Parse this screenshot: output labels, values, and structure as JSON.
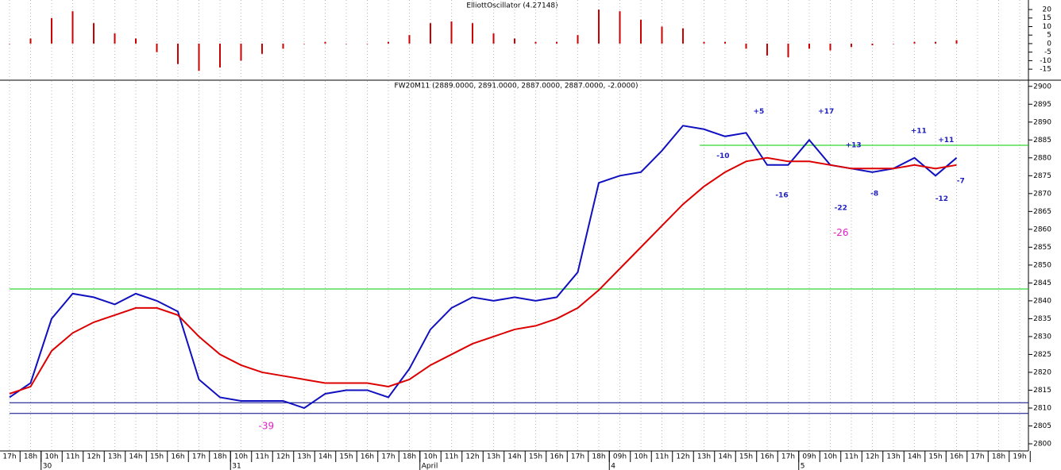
{
  "chart_data": [
    {
      "type": "bar",
      "title": "ElliottOscillator (4.27148)",
      "color": "#cc0000",
      "values": [
        0,
        3,
        15,
        19,
        12,
        6,
        3,
        -5,
        -12,
        -16,
        -14,
        -10,
        -6,
        -3,
        0,
        1,
        0,
        0,
        1,
        5,
        12,
        13,
        12,
        6,
        3,
        1,
        1,
        5,
        20,
        19,
        14,
        10,
        9,
        1,
        1,
        -3,
        -7,
        -8,
        -3,
        -4,
        -2,
        -1,
        0,
        1,
        1,
        2,
        null,
        null,
        null
      ],
      "ylim": [
        -21,
        25.6
      ],
      "yticks": [
        -15,
        -10,
        -5,
        0,
        5,
        10,
        15,
        20
      ]
    },
    {
      "type": "line",
      "title": "FW20M11 (2889.0000, 2891.0000, 2887.0000, 2887.0000, -2.0000)",
      "x": [
        "17h",
        "18h",
        "10h",
        "11h",
        "12h",
        "13h",
        "14h",
        "15h",
        "16h",
        "17h",
        "18h",
        "10h",
        "11h",
        "12h",
        "13h",
        "14h",
        "15h",
        "16h",
        "17h",
        "18h",
        "10h",
        "11h",
        "12h",
        "13h",
        "14h",
        "15h",
        "16h",
        "17h",
        "18h",
        "09h",
        "10h",
        "11h",
        "12h",
        "13h",
        "14h",
        "15h",
        "16h",
        "17h",
        "09h",
        "10h",
        "11h",
        "12h",
        "13h",
        "14h",
        "15h",
        "16h",
        "17h",
        "18h",
        "19h"
      ],
      "dates": [
        "30",
        "31",
        "April",
        "4",
        "5"
      ],
      "series": [
        {
          "color": "#1010c0",
          "values": [
            2813,
            2817,
            2835,
            2842,
            2841,
            2839,
            2842,
            2840,
            2837,
            2818,
            2813,
            2812,
            2812,
            2812,
            2810,
            2814,
            2815,
            2815,
            2813,
            2821,
            2832,
            2838,
            2841,
            2840,
            2841,
            2840,
            2841,
            2848,
            2873,
            2875,
            2876,
            2882,
            2889,
            2888,
            2886,
            2887,
            2878,
            2878,
            2885,
            2878,
            2877,
            2876,
            2877,
            2880,
            2875,
            2880,
            null,
            null,
            null
          ]
        },
        {
          "color": "#dd0000",
          "values": [
            2814,
            2816,
            2826,
            2831,
            2834,
            2836,
            2838,
            2838,
            2836,
            2830,
            2825,
            2822,
            2820,
            2819,
            2818,
            2817,
            2817,
            2817,
            2816,
            2818,
            2822,
            2825,
            2828,
            2830,
            2832,
            2833,
            2835,
            2838,
            2843,
            2849,
            2855,
            2861,
            2867,
            2872,
            2876,
            2879,
            2880,
            2879,
            2879,
            2878,
            2877,
            2877,
            2877,
            2878,
            2877,
            2878,
            null,
            null,
            null
          ]
        }
      ],
      "hlines": [
        {
          "y": 2843.3,
          "color": "#00cc00",
          "from": 0
        },
        {
          "y": 2883.5,
          "color": "#00cc00",
          "from": 32.8
        },
        {
          "y": 2811.5,
          "color": "#000080",
          "from": 0
        },
        {
          "y": 2808.5,
          "color": "#000080",
          "from": 0
        }
      ],
      "annotations": [
        {
          "text": "+5",
          "x": 35.6,
          "y": 2893,
          "color": "#2020c0"
        },
        {
          "text": "+17",
          "x": 38.8,
          "y": 2893,
          "color": "#2020c0"
        },
        {
          "text": "-10",
          "x": 33.9,
          "y": 2880.5,
          "color": "#2020c0"
        },
        {
          "text": "+13",
          "x": 40.1,
          "y": 2883.5,
          "color": "#2020c0"
        },
        {
          "text": "-16",
          "x": 36.7,
          "y": 2869.5,
          "color": "#2020c0"
        },
        {
          "text": "-22",
          "x": 39.5,
          "y": 2866,
          "color": "#2020c0"
        },
        {
          "text": "-8",
          "x": 41.1,
          "y": 2870,
          "color": "#2020c0"
        },
        {
          "text": "+11",
          "x": 43.2,
          "y": 2887.5,
          "color": "#2020c0"
        },
        {
          "text": "+11",
          "x": 44.5,
          "y": 2885,
          "color": "#2020c0"
        },
        {
          "text": "-12",
          "x": 44.3,
          "y": 2868.5,
          "color": "#2020c0"
        },
        {
          "text": "-7",
          "x": 45.2,
          "y": 2873.5,
          "color": "#2020c0"
        },
        {
          "text": "-39",
          "x": 12.2,
          "y": 2804.9,
          "color": "#e020c0"
        },
        {
          "text": "-26",
          "x": 39.5,
          "y": 2859,
          "color": "#e020c0"
        }
      ],
      "ylim": [
        2798,
        2901.5
      ],
      "yticks": [
        2800,
        2805,
        2810,
        2815,
        2820,
        2825,
        2830,
        2835,
        2840,
        2845,
        2850,
        2855,
        2860,
        2865,
        2870,
        2875,
        2880,
        2885,
        2890,
        2895,
        2900
      ]
    }
  ]
}
